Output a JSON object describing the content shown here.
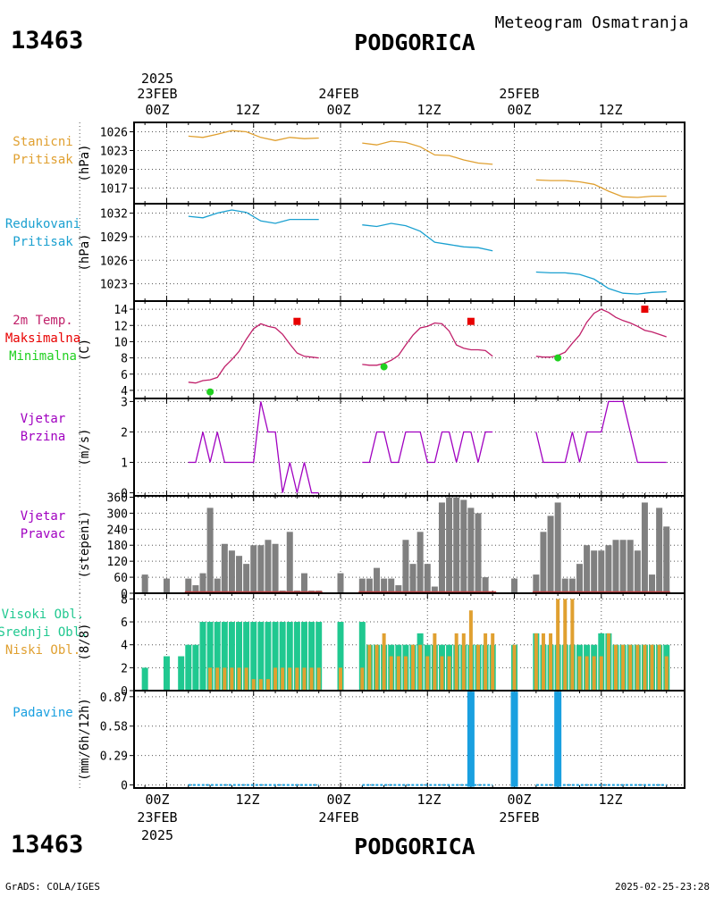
{
  "header": {
    "station_id": "13463",
    "station_name": "PODGORICA",
    "product_title": "Meteogram Osmatranja"
  },
  "footer": {
    "left_text": "GrADS: COLA/IGES",
    "right_text": "2025-02-25-23:28"
  },
  "top_axis": {
    "year": "2025",
    "date_labels": [
      "23FEB",
      "24FEB",
      "25FEB"
    ],
    "time_labels": [
      "00Z",
      "12Z",
      "00Z",
      "12Z",
      "00Z",
      "12Z"
    ]
  },
  "bottom_axis": {
    "year": "2025",
    "date_labels": [
      "23FEB",
      "24FEB",
      "25FEB"
    ],
    "time_labels": [
      "00Z",
      "12Z",
      "00Z",
      "12Z",
      "00Z",
      "12Z"
    ]
  },
  "colors": {
    "station_pressure": "#e0a030",
    "reduced_pressure": "#1aa0d0",
    "temperature_line": "#c0206a",
    "temperature_max": "#e80000",
    "temperature_min": "#20d020",
    "wind": "#a000c0",
    "wind_dir_bars": "#808080",
    "wind_dir_base": "#c04040",
    "cloud_high": "#20c890",
    "cloud_low": "#e0a030",
    "precip": "#1aa0e0"
  },
  "chart_data": [
    {
      "type": "line",
      "panel": "station_pressure",
      "label_lines": [
        "Stanicni",
        "Pritisak"
      ],
      "ylabel": "(hPa)",
      "ylim": [
        1014.5,
        1027.5
      ],
      "yticks": [
        1017,
        1020,
        1023,
        1026
      ],
      "x_unit": "hours since 23FEB2025 00Z",
      "segments": [
        {
          "x": [
            3,
            5,
            7,
            9,
            11,
            13,
            15,
            17,
            19,
            21
          ],
          "y": [
            1025.3,
            1025.1,
            1025.6,
            1026.2,
            1026.0,
            1025.1,
            1024.6,
            1025.1,
            1024.9,
            1025.0
          ]
        },
        {
          "x": [
            27,
            29,
            31,
            33,
            35,
            37,
            39,
            41,
            43,
            45
          ],
          "y": [
            1024.2,
            1023.9,
            1024.5,
            1024.3,
            1023.6,
            1022.3,
            1022.2,
            1021.5,
            1021.0,
            1020.8
          ]
        },
        {
          "x": [
            51,
            53,
            55,
            57,
            59,
            61,
            63,
            65,
            67,
            69
          ],
          "y": [
            1018.3,
            1018.2,
            1018.2,
            1018.0,
            1017.6,
            1016.5,
            1015.6,
            1015.5,
            1015.7,
            1015.7
          ]
        }
      ]
    },
    {
      "type": "line",
      "panel": "reduced_pressure",
      "label_lines": [
        "Redukovani",
        "Pritisak"
      ],
      "ylabel": "(hPa)",
      "ylim": [
        1020.8,
        1033.2
      ],
      "yticks": [
        1023,
        1026,
        1029,
        1032
      ],
      "segments": [
        {
          "x": [
            3,
            5,
            7,
            9,
            11,
            13,
            15,
            17,
            19,
            21
          ],
          "y": [
            1031.6,
            1031.4,
            1032.0,
            1032.4,
            1032.1,
            1031.0,
            1030.7,
            1031.2,
            1031.2,
            1031.2
          ]
        },
        {
          "x": [
            27,
            29,
            31,
            33,
            35,
            37,
            39,
            41,
            43,
            45
          ],
          "y": [
            1030.5,
            1030.3,
            1030.7,
            1030.4,
            1029.7,
            1028.3,
            1028.0,
            1027.7,
            1027.6,
            1027.2
          ]
        },
        {
          "x": [
            51,
            53,
            55,
            57,
            59,
            61,
            63,
            65,
            67,
            69
          ],
          "y": [
            1024.5,
            1024.4,
            1024.4,
            1024.2,
            1023.6,
            1022.4,
            1021.8,
            1021.7,
            1021.9,
            1022.0
          ]
        }
      ]
    },
    {
      "type": "line",
      "panel": "temperature",
      "label_lines": [
        "2m Temp.",
        "Maksimalna",
        "Minimalna"
      ],
      "ylabel": "(C)",
      "ylim": [
        3,
        15
      ],
      "yticks": [
        4,
        6,
        8,
        10,
        12,
        14
      ],
      "segments": [
        {
          "x": [
            3,
            4,
            5,
            6,
            7,
            8,
            9,
            10,
            11,
            12,
            13,
            14,
            15,
            16,
            17,
            18,
            19,
            20,
            21
          ],
          "y": [
            5.0,
            4.9,
            5.2,
            5.3,
            5.6,
            6.9,
            7.8,
            8.8,
            10.3,
            11.6,
            12.2,
            11.9,
            11.7,
            10.9,
            9.7,
            8.6,
            8.2,
            8.1,
            8.0
          ]
        },
        {
          "x": [
            27,
            28,
            29,
            30,
            31,
            32,
            33,
            34,
            35,
            36,
            37,
            38,
            39,
            40,
            41,
            42,
            43,
            44,
            45
          ],
          "y": [
            7.2,
            7.1,
            7.1,
            7.3,
            7.7,
            8.3,
            9.6,
            10.8,
            11.7,
            11.9,
            12.3,
            12.2,
            11.3,
            9.6,
            9.2,
            9.0,
            9.0,
            8.9,
            8.2
          ]
        },
        {
          "x": [
            51,
            52,
            53,
            54,
            55,
            56,
            57,
            58,
            59,
            60,
            61,
            62,
            63,
            64,
            65,
            66,
            67,
            68,
            69
          ],
          "y": [
            8.2,
            8.1,
            8.1,
            8.3,
            8.7,
            9.8,
            10.8,
            12.4,
            13.5,
            14.0,
            13.6,
            13.0,
            12.6,
            12.3,
            11.9,
            11.4,
            11.2,
            10.9,
            10.6
          ]
        }
      ],
      "maximum": {
        "x": [
          18,
          42,
          66
        ],
        "y": [
          12.5,
          12.5,
          14.0
        ]
      },
      "minimum": {
        "x": [
          6,
          30,
          54
        ],
        "y": [
          3.8,
          6.9,
          8.0
        ]
      }
    },
    {
      "type": "line",
      "panel": "wind_speed",
      "label_lines": [
        "Vjetar",
        "Brzina"
      ],
      "ylabel": "(m/s)",
      "ylim": [
        -0.1,
        3.1
      ],
      "yticks": [
        0,
        1,
        2,
        3
      ],
      "segments": [
        {
          "x": [
            3,
            4,
            5,
            6,
            7,
            8,
            9,
            10,
            11,
            12,
            13,
            14,
            15,
            16,
            17,
            18,
            19,
            20,
            21
          ],
          "y": [
            1,
            1,
            2,
            1,
            2,
            1,
            1,
            1,
            1,
            1,
            3,
            2,
            2,
            0,
            1,
            0,
            1,
            0,
            0
          ]
        },
        {
          "x": [
            27,
            28,
            29,
            30,
            31,
            32,
            33,
            34,
            35,
            36,
            37,
            38,
            39,
            40,
            41,
            42,
            43,
            44,
            45
          ],
          "y": [
            1,
            1,
            2,
            2,
            1,
            1,
            2,
            2,
            2,
            1,
            1,
            2,
            2,
            1,
            2,
            2,
            1,
            2,
            2
          ]
        },
        {
          "x": [
            51,
            52,
            53,
            54,
            55,
            56,
            57,
            58,
            59,
            60,
            61,
            62,
            63,
            64,
            65,
            66,
            67,
            68,
            69
          ],
          "y": [
            2,
            1,
            1,
            1,
            1,
            2,
            1,
            2,
            2,
            2,
            3,
            3,
            3,
            2,
            1,
            1,
            1,
            1,
            1
          ]
        }
      ]
    },
    {
      "type": "bar",
      "panel": "wind_direction",
      "label_lines": [
        "Vjetar",
        "Pravac"
      ],
      "ylabel": "(stepeni)",
      "ylim": [
        0,
        365
      ],
      "yticks": [
        0,
        60,
        120,
        180,
        240,
        300,
        360
      ],
      "x": [
        -3,
        0,
        3,
        4,
        5,
        6,
        7,
        8,
        9,
        10,
        11,
        12,
        13,
        14,
        15,
        16,
        17,
        18,
        19,
        20,
        21,
        24,
        27,
        28,
        29,
        30,
        31,
        32,
        33,
        34,
        35,
        36,
        37,
        38,
        39,
        40,
        41,
        42,
        43,
        44,
        45,
        48,
        51,
        52,
        53,
        54,
        55,
        56,
        57,
        58,
        59,
        60,
        61,
        62,
        63,
        64,
        65,
        66,
        67,
        68,
        69
      ],
      "values": [
        70,
        55,
        55,
        30,
        75,
        320,
        55,
        185,
        160,
        140,
        110,
        180,
        180,
        200,
        185,
        10,
        230,
        10,
        75,
        10,
        10,
        75,
        55,
        55,
        95,
        55,
        55,
        30,
        200,
        110,
        230,
        110,
        25,
        340,
        360,
        360,
        350,
        320,
        300,
        60,
        0,
        55,
        70,
        230,
        290,
        340,
        55,
        55,
        110,
        180,
        160,
        160,
        180,
        200,
        200,
        200,
        160,
        340,
        70,
        320,
        250
      ]
    },
    {
      "type": "bar",
      "panel": "clouds",
      "label_lines": [
        "Visoki Obl.",
        "Srednji Obl.",
        "Niski Obl."
      ],
      "ylabel": "(8/8)",
      "ylim": [
        0,
        8.5
      ],
      "yticks": [
        0,
        2,
        4,
        6,
        8
      ],
      "x": [
        -3,
        0,
        2,
        3,
        4,
        5,
        6,
        7,
        8,
        9,
        10,
        11,
        12,
        13,
        14,
        15,
        16,
        17,
        18,
        19,
        20,
        21,
        24,
        27,
        28,
        29,
        30,
        31,
        32,
        33,
        34,
        35,
        36,
        37,
        38,
        39,
        40,
        41,
        42,
        43,
        44,
        45,
        48,
        51,
        52,
        53,
        54,
        55,
        56,
        57,
        58,
        59,
        60,
        61,
        62,
        63,
        64,
        65,
        66,
        67,
        68,
        69
      ],
      "series": [
        {
          "name": "Visoki Obl.",
          "values": [
            2,
            3,
            3,
            4,
            4,
            6,
            6,
            6,
            6,
            6,
            6,
            6,
            6,
            6,
            6,
            6,
            6,
            6,
            6,
            6,
            6,
            6,
            6,
            6,
            4,
            4,
            4,
            4,
            4,
            4,
            4,
            5,
            4,
            4,
            4,
            4,
            4,
            4,
            4,
            4,
            4,
            4,
            4,
            5,
            4,
            4,
            4,
            4,
            4,
            4,
            4,
            4,
            5,
            5,
            4,
            4,
            4,
            4,
            4,
            4,
            4,
            4
          ]
        },
        {
          "name": "Niski Obl.",
          "values": [
            0,
            0,
            0,
            0,
            0,
            0,
            2,
            2,
            2,
            2,
            2,
            2,
            1,
            1,
            1,
            2,
            2,
            2,
            2,
            2,
            2,
            2,
            2,
            2,
            4,
            4,
            5,
            3,
            3,
            3,
            4,
            4,
            3,
            5,
            3,
            3,
            5,
            5,
            7,
            4,
            5,
            5,
            4,
            5,
            5,
            5,
            8,
            8,
            8,
            3,
            3,
            3,
            3,
            5,
            4,
            4,
            4,
            4,
            4,
            4,
            4,
            3
          ]
        }
      ]
    },
    {
      "type": "bar",
      "panel": "precipitation",
      "label_lines": [
        "Padavine"
      ],
      "ylabel": "(mm/6h/12h)",
      "ylim": [
        -0.03,
        0.93
      ],
      "yticks": [
        0,
        0.29,
        0.58,
        0.87
      ],
      "x": [
        42,
        48,
        54
      ],
      "values": [
        0.92,
        0.92,
        0.92
      ]
    }
  ]
}
